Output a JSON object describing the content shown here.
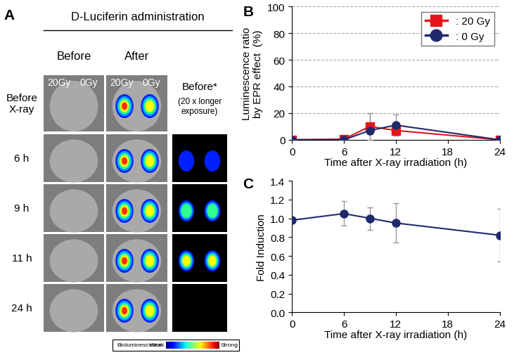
{
  "panel_a": {
    "label": "A",
    "header": "D-Luciferin administration",
    "columns": [
      "Before",
      "After"
    ],
    "dose_labels": [
      "20Gy",
      "0Gy"
    ],
    "extra_column": [
      "Before*",
      "(20 x longer\nexposure)"
    ],
    "rows": [
      "Before\nX-ray",
      "6 h",
      "9 h",
      "11 h",
      "24 h"
    ],
    "colorbar": {
      "title": "Bioluminescence",
      "low": "Weak",
      "high": "Strong"
    }
  },
  "chart_data": [
    {
      "label": "B",
      "type": "line",
      "y_label": "Luminescence ratio\nby EPR effect  (%)",
      "x_label": "Time after X-ray irradiation (h)",
      "x": [
        0,
        6,
        9,
        12,
        24
      ],
      "xlim": [
        0,
        24
      ],
      "xticks": [
        0,
        6,
        12,
        18,
        24
      ],
      "ylim": [
        0,
        100
      ],
      "yticks": [
        0,
        20,
        40,
        60,
        80,
        100
      ],
      "grid": true,
      "legend": "upper right",
      "series": [
        {
          "name": ": 20 Gy",
          "color": "#e8141c",
          "marker": "square",
          "values": [
            0,
            0.5,
            10,
            7,
            0
          ],
          "errors": [
            0,
            0,
            10,
            0,
            0
          ]
        },
        {
          "name": ": 0 Gy",
          "color": "#1f2a6b",
          "marker": "circle",
          "values": [
            0,
            0,
            7,
            11,
            0
          ],
          "errors": [
            0,
            0,
            13,
            8,
            0
          ]
        }
      ]
    },
    {
      "label": "C",
      "type": "line",
      "y_label": "Fold Induction",
      "x_label": "Time after X-ray irradiation (h)",
      "x": [
        0,
        6,
        9,
        12,
        24
      ],
      "xlim": [
        0,
        24
      ],
      "xticks": [
        0,
        6,
        12,
        18,
        24
      ],
      "ylim": [
        0.0,
        1.4
      ],
      "yticks": [
        0.0,
        0.2,
        0.4,
        0.6,
        0.8,
        1.0,
        1.2,
        1.4
      ],
      "color": "#1f2a6b",
      "marker": "circle",
      "values": [
        0.98,
        1.05,
        1.0,
        0.95,
        0.82
      ],
      "errors": [
        0,
        0.13,
        0.12,
        0.21,
        0.28
      ]
    }
  ]
}
